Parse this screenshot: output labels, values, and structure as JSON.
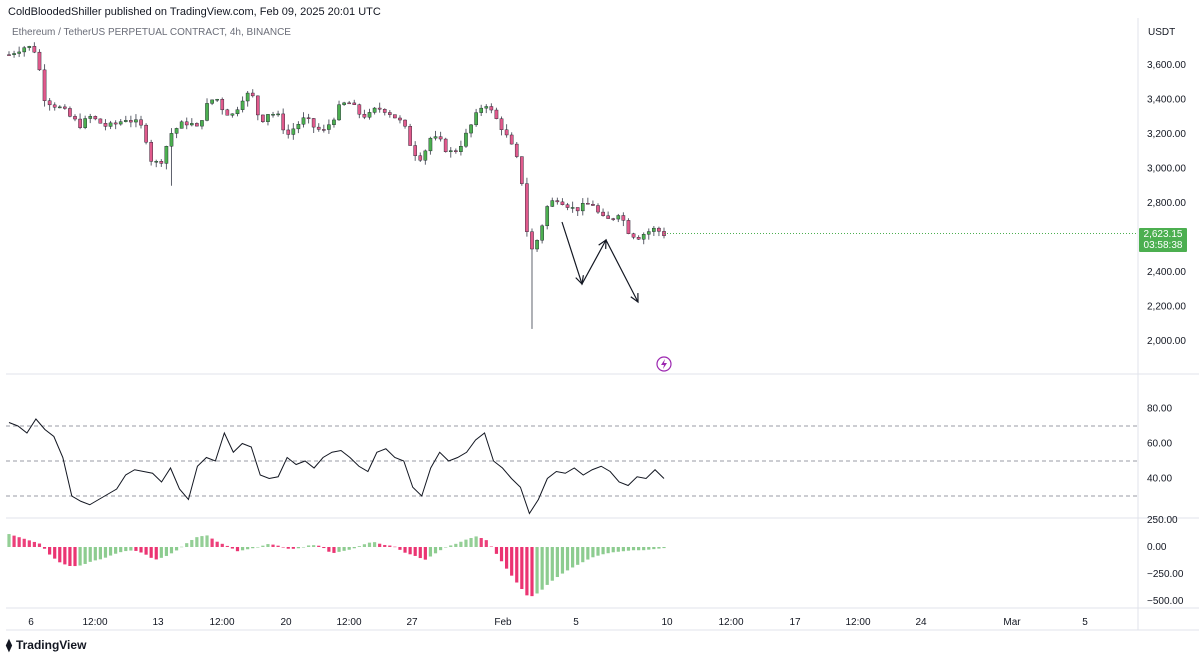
{
  "header": {
    "publisher_line": "ColdBloodedShiller published on TradingView.com, Feb 09, 2025 20:01 UTC"
  },
  "symbol_line": "Ethereum / TetherUS PERPETUAL CONTRACT, 4h, BINANCE",
  "currency": "USDT",
  "last_price": {
    "value": "2,623.15",
    "countdown": "03:58:38",
    "color": "#4caf50"
  },
  "footer": {
    "brand": "TradingView"
  },
  "colors": {
    "up": "#4caf50",
    "down": "#e05a8c",
    "line": "#131722",
    "grid": "#e0e3eb"
  },
  "chart_data": [
    {
      "type": "candlestick",
      "title": "",
      "x_ticks": [
        "6",
        "12:00",
        "13",
        "12:00",
        "20",
        "12:00",
        "27",
        "Feb",
        "5",
        "10",
        "12:00",
        "17",
        "12:00",
        "24",
        "Mar",
        "5"
      ],
      "y_ticks": [
        "2,000.00",
        "2,200.00",
        "2,400.00",
        "2,600.00",
        "2,800.00",
        "3,000.00",
        "3,200.00",
        "3,400.00",
        "3,600.00"
      ],
      "ylim": [
        1880,
        3740
      ],
      "close_series": [
        3660,
        3690,
        3710,
        3680,
        3400,
        3370,
        3340,
        3290,
        3250,
        3300,
        3270,
        3240,
        3260,
        3290,
        3270,
        3230,
        3020,
        3050,
        3200,
        3250,
        3270,
        3230,
        3360,
        3420,
        3330,
        3310,
        3410,
        3440,
        3270,
        3330,
        3300,
        3190,
        3250,
        3290,
        3240,
        3210,
        3280,
        3370,
        3380,
        3320,
        3300,
        3350,
        3340,
        3300,
        3250,
        3100,
        3060,
        3180,
        3160,
        3090,
        3110,
        3200,
        3300,
        3390,
        3310,
        3230,
        3130,
        3000,
        2500,
        2600,
        2780,
        2830,
        2800,
        2760,
        2780,
        2800,
        2710,
        2700,
        2750,
        2640,
        2600,
        2630,
        2650,
        2620
      ],
      "candle_count": 130,
      "annotation": "hand-drawn zigzag arrows pointing down from ~2,850 to ~2,330, up to ~2,600, down to ~2,240",
      "grid": false
    },
    {
      "type": "line",
      "title": "",
      "y_ticks": [
        "40.00",
        "60.00",
        "80.00"
      ],
      "ylim": [
        18,
        98
      ],
      "bands": [
        30,
        50,
        70
      ],
      "values": [
        72,
        70,
        66,
        74,
        68,
        64,
        52,
        30,
        27,
        25,
        28,
        31,
        34,
        42,
        45,
        44,
        43,
        38,
        46,
        34,
        28,
        47,
        52,
        50,
        66,
        55,
        60,
        58,
        42,
        40,
        41,
        52,
        48,
        50,
        46,
        52,
        55,
        56,
        52,
        47,
        44,
        55,
        57,
        52,
        50,
        35,
        30,
        46,
        55,
        50,
        52,
        55,
        62,
        66,
        50,
        46,
        40,
        35,
        20,
        28,
        40,
        44,
        43,
        46,
        42,
        45,
        47,
        44,
        38,
        36,
        41,
        40,
        45,
        40
      ]
    },
    {
      "type": "bar",
      "title": "",
      "y_ticks": [
        "250.00",
        "0.00",
        "−250.00",
        "−500.00"
      ],
      "ylim": [
        -520,
        260
      ],
      "values": [
        120,
        90,
        60,
        30,
        -80,
        -150,
        -180,
        -170,
        -130,
        -110,
        -70,
        -40,
        -30,
        -60,
        -120,
        -90,
        -40,
        30,
        90,
        110,
        50,
        10,
        -40,
        -20,
        0,
        30,
        10,
        -20,
        -10,
        20,
        10,
        -60,
        -40,
        -20,
        20,
        50,
        20,
        10,
        -50,
        -80,
        -120,
        -60,
        0,
        30,
        70,
        100,
        60,
        -80,
        -220,
        -350,
        -470,
        -420,
        -330,
        -260,
        -200,
        -150,
        -100,
        -70,
        -50,
        -40,
        -30,
        -30,
        -20,
        -10
      ]
    }
  ]
}
